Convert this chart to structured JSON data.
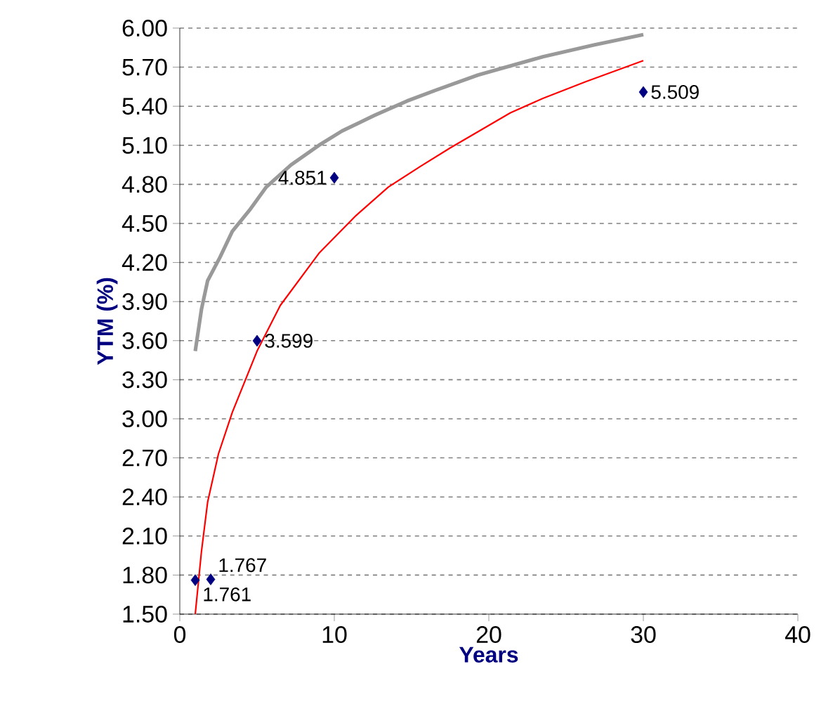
{
  "chart_data": {
    "type": "line",
    "xlabel": "Years",
    "ylabel": "YTM (%)",
    "xlim": [
      0,
      40
    ],
    "xticks": [
      0,
      10,
      20,
      30,
      40
    ],
    "ylim": [
      1.5,
      6.0
    ],
    "yticks": [
      {
        "value": 1.5,
        "label": "1.50"
      },
      {
        "value": 1.8,
        "label": "1.80"
      },
      {
        "value": 2.1,
        "label": "2.10"
      },
      {
        "value": 2.4,
        "label": "2.40"
      },
      {
        "value": 2.7,
        "label": "2.70"
      },
      {
        "value": 3.0,
        "label": "3.00"
      },
      {
        "value": 3.3,
        "label": "3.30"
      },
      {
        "value": 3.6,
        "label": "3.60"
      },
      {
        "value": 3.9,
        "label": "3.90"
      },
      {
        "value": 4.2,
        "label": "4.20"
      },
      {
        "value": 4.5,
        "label": "4.50"
      },
      {
        "value": 4.8,
        "label": "4.80"
      },
      {
        "value": 5.1,
        "label": "5.10"
      },
      {
        "value": 5.4,
        "label": "5.40"
      },
      {
        "value": 5.7,
        "label": "5.70"
      },
      {
        "value": 6.0,
        "label": "6.00"
      }
    ],
    "grid": "y",
    "marker": "none",
    "line_style": "solid",
    "series": [
      {
        "color": "#999999",
        "x": [
          1,
          1.4,
          1.8,
          2.6,
          3.4,
          4.5,
          5.6,
          7.2,
          9,
          10.5,
          12.6,
          14.7,
          16.5,
          19.3,
          23.5,
          26.8,
          30
        ],
        "values": [
          3.52,
          3.84,
          4.06,
          4.24,
          4.44,
          4.6,
          4.78,
          4.95,
          5.1,
          5.21,
          5.33,
          5.44,
          5.52,
          5.64,
          5.78,
          5.87,
          5.95
        ]
      },
      {
        "color": "#ff0000",
        "x": [
          1,
          1.4,
          1.8,
          2.5,
          3.4,
          5,
          6.5,
          9,
          11.4,
          13.5,
          15.6,
          17.5,
          21.4,
          23.5,
          26.3,
          30
        ],
        "values": [
          1.5,
          1.98,
          2.36,
          2.73,
          3.05,
          3.52,
          3.87,
          4.27,
          4.56,
          4.78,
          4.94,
          5.08,
          5.35,
          5.46,
          5.59,
          5.75
        ]
      },
      {
        "type": "scatter",
        "marker": "diamond",
        "color": "#000080",
        "x": [
          1,
          2,
          5,
          10,
          30
        ],
        "values": [
          1.761,
          1.767,
          3.599,
          4.851,
          5.509
        ],
        "value_labels": [
          "1.761",
          "1.767",
          "3.599",
          "4.851",
          "5.509"
        ]
      }
    ]
  }
}
